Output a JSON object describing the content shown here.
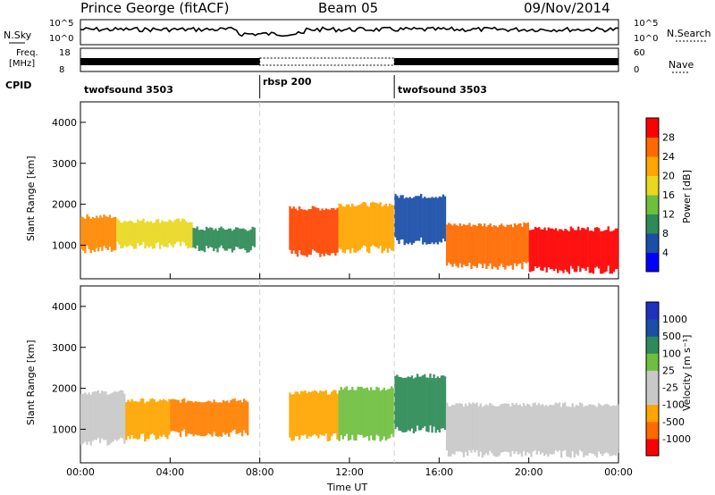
{
  "header": {
    "station": "Prince George (fitACF)",
    "beam": "Beam 05",
    "date": "09/Nov/2014"
  },
  "top_panels": {
    "nsky_label": "N.Sky",
    "nsky_ticks": [
      "10^5",
      "10^0"
    ],
    "nsearch_label": "N.Search",
    "nsearch_ticks": [
      "10^5",
      "10^0"
    ],
    "freq_label_1": "Freq.",
    "freq_label_2": "[MHz]",
    "freq_ticks": [
      "18",
      "8"
    ],
    "nave_label": "Nave",
    "nave_ticks": [
      "60",
      "0"
    ],
    "cpid_label": "CPID",
    "cpid_segments": [
      {
        "name": "twofsound 3503",
        "start": 0.0,
        "end": 8.0
      },
      {
        "name": "rbsp 200",
        "start": 8.0,
        "end": 14.0
      },
      {
        "name": "twofsound 3503",
        "start": 14.0,
        "end": 24.0
      }
    ]
  },
  "chart_data": [
    {
      "type": "heatmap",
      "title": "",
      "xlabel": "Time UT",
      "ylabel": "Slant Range [km]",
      "xlim": [
        0,
        24
      ],
      "ylim": [
        180,
        4500
      ],
      "x_ticks": [
        "00:00",
        "04:00",
        "08:00",
        "12:00",
        "16:00",
        "20:00",
        "00:00"
      ],
      "y_ticks": [
        "1000",
        "2000",
        "3000",
        "4000"
      ],
      "colorbar": {
        "label": "Power [dB]",
        "ticks": [
          "28",
          "24",
          "20",
          "16",
          "12",
          "8",
          "4"
        ],
        "colors": [
          "#0000ff",
          "#1a4ea8",
          "#2e8b57",
          "#6fbf3f",
          "#e8d820",
          "#ffa500",
          "#ff6a00",
          "#ff0000"
        ]
      },
      "bands": [
        {
          "t0": 0.0,
          "t1": 1.6,
          "r0": 900,
          "r1": 1700,
          "color": "#ff8800"
        },
        {
          "t0": 1.6,
          "t1": 5.0,
          "r0": 1000,
          "r1": 1600,
          "color": "#e8d820"
        },
        {
          "t0": 5.0,
          "t1": 7.8,
          "r0": 900,
          "r1": 1400,
          "color": "#2e8b57"
        },
        {
          "t0": 9.3,
          "t1": 11.5,
          "r0": 800,
          "r1": 1900,
          "color": "#ff4400"
        },
        {
          "t0": 11.5,
          "t1": 14.0,
          "r0": 900,
          "r1": 2000,
          "color": "#ffa500"
        },
        {
          "t0": 14.0,
          "t1": 16.3,
          "r0": 1100,
          "r1": 2200,
          "color": "#1a4ea8"
        },
        {
          "t0": 16.3,
          "t1": 20.0,
          "r0": 500,
          "r1": 1500,
          "color": "#ff6a00"
        },
        {
          "t0": 20.0,
          "t1": 24.0,
          "r0": 400,
          "r1": 1400,
          "color": "#ff0000"
        }
      ]
    },
    {
      "type": "heatmap",
      "title": "",
      "xlabel": "Time UT",
      "ylabel": "Slant Range [km]",
      "xlim": [
        0,
        24
      ],
      "ylim": [
        180,
        4500
      ],
      "x_ticks": [
        "00:00",
        "04:00",
        "08:00",
        "12:00",
        "16:00",
        "20:00",
        "00:00"
      ],
      "y_ticks": [
        "1000",
        "2000",
        "3000",
        "4000"
      ],
      "colorbar": {
        "label": "Velocity [m s⁻¹]",
        "ticks": [
          "1000",
          "500",
          "100",
          "25",
          "-25",
          "-100",
          "-500",
          "-1000"
        ],
        "colors": [
          "#ff0000",
          "#ff6a00",
          "#ffa500",
          "#c8c8c8",
          "#c8c8c8",
          "#6fbf3f",
          "#2e8b57",
          "#1a4ea8",
          "#2030c0"
        ]
      },
      "bands": [
        {
          "t0": 0.0,
          "t1": 2.0,
          "r0": 700,
          "r1": 1900,
          "color": "#c8c8c8"
        },
        {
          "t0": 2.0,
          "t1": 4.0,
          "r0": 800,
          "r1": 1700,
          "color": "#ffa500"
        },
        {
          "t0": 4.0,
          "t1": 7.5,
          "r0": 900,
          "r1": 1700,
          "color": "#ff8000"
        },
        {
          "t0": 9.3,
          "t1": 11.5,
          "r0": 800,
          "r1": 1900,
          "color": "#ffa500"
        },
        {
          "t0": 11.5,
          "t1": 14.0,
          "r0": 800,
          "r1": 2000,
          "color": "#6fbf3f"
        },
        {
          "t0": 14.0,
          "t1": 16.3,
          "r0": 1000,
          "r1": 2300,
          "color": "#2e8b57"
        },
        {
          "t0": 16.3,
          "t1": 24.0,
          "r0": 400,
          "r1": 1600,
          "color": "#c8c8c8"
        }
      ]
    }
  ]
}
